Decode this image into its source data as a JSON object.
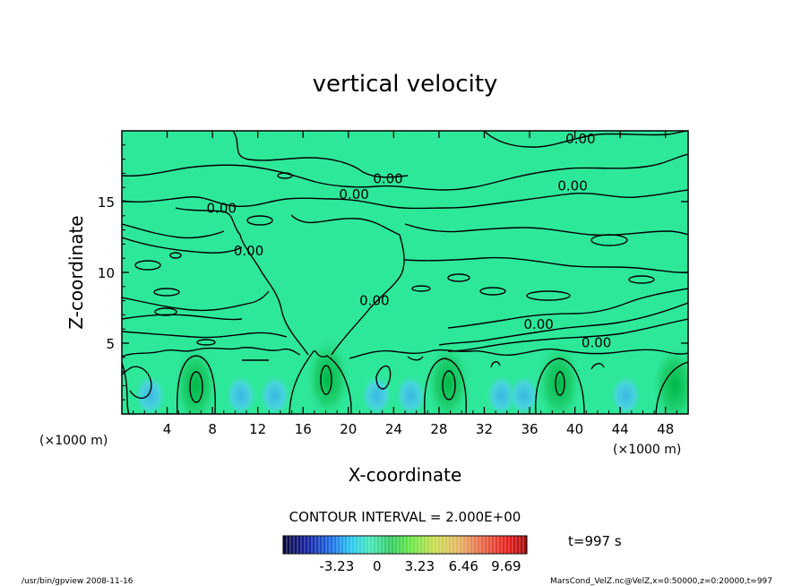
{
  "chart_data": {
    "type": "heatmap",
    "title": "vertical velocity",
    "xlabel": "X-coordinate",
    "ylabel": "Z-coordinate",
    "x_unit": "(×1000 m)",
    "y_unit": "(×1000 m)",
    "xlim": [
      0,
      50
    ],
    "ylim": [
      0,
      20
    ],
    "xticks": [
      4,
      8,
      12,
      16,
      20,
      24,
      28,
      32,
      36,
      40,
      44,
      48
    ],
    "yticks": [
      5,
      10,
      15
    ],
    "contour_interval_text": "CONTOUR INTERVAL = 2.000E+00",
    "contour_labels": [
      {
        "text": "0.00",
        "x": 40.5,
        "y": 19.1
      },
      {
        "text": "0.00",
        "x": 23.5,
        "y": 16.3
      },
      {
        "text": "0.00",
        "x": 20.5,
        "y": 15.2
      },
      {
        "text": "0.00",
        "x": 39.8,
        "y": 15.8
      },
      {
        "text": "0.00",
        "x": 8.8,
        "y": 14.2
      },
      {
        "text": "0.00",
        "x": 11.2,
        "y": 11.2
      },
      {
        "text": "0.00",
        "x": 22.3,
        "y": 7.7
      },
      {
        "text": "0.00",
        "x": 36.8,
        "y": 6.0
      },
      {
        "text": "0.00",
        "x": 41.9,
        "y": 4.7
      }
    ],
    "updraft_cells": [
      {
        "x": 6.5,
        "z": 2.0
      },
      {
        "x": 18.2,
        "z": 2.5
      },
      {
        "x": 28.8,
        "z": 2.2
      },
      {
        "x": 38.6,
        "z": 2.2
      },
      {
        "x": 48.8,
        "z": 2.0
      }
    ],
    "colorbar": {
      "ticks": [
        "-3.23",
        "0",
        "3.23",
        "6.46",
        "9.69"
      ],
      "colors": [
        "#0a0a3a",
        "#1420a0",
        "#1e6ee6",
        "#28c8f0",
        "#46e6b4",
        "#32c864",
        "#64e646",
        "#c8dc50",
        "#e6b464",
        "#e66446",
        "#e61e1e",
        "#a00a0a"
      ]
    },
    "time_label": "t=997 s",
    "colors": {
      "background": "#2ee89a",
      "updraft": "#1cc85a",
      "downdraft": "#3cc8f0"
    }
  },
  "footer": {
    "left": "/usr/bin/gpview  2008-11-16",
    "right": "MarsCond_VelZ.nc@VelZ,x=0:50000,z=0:20000,t=997"
  }
}
